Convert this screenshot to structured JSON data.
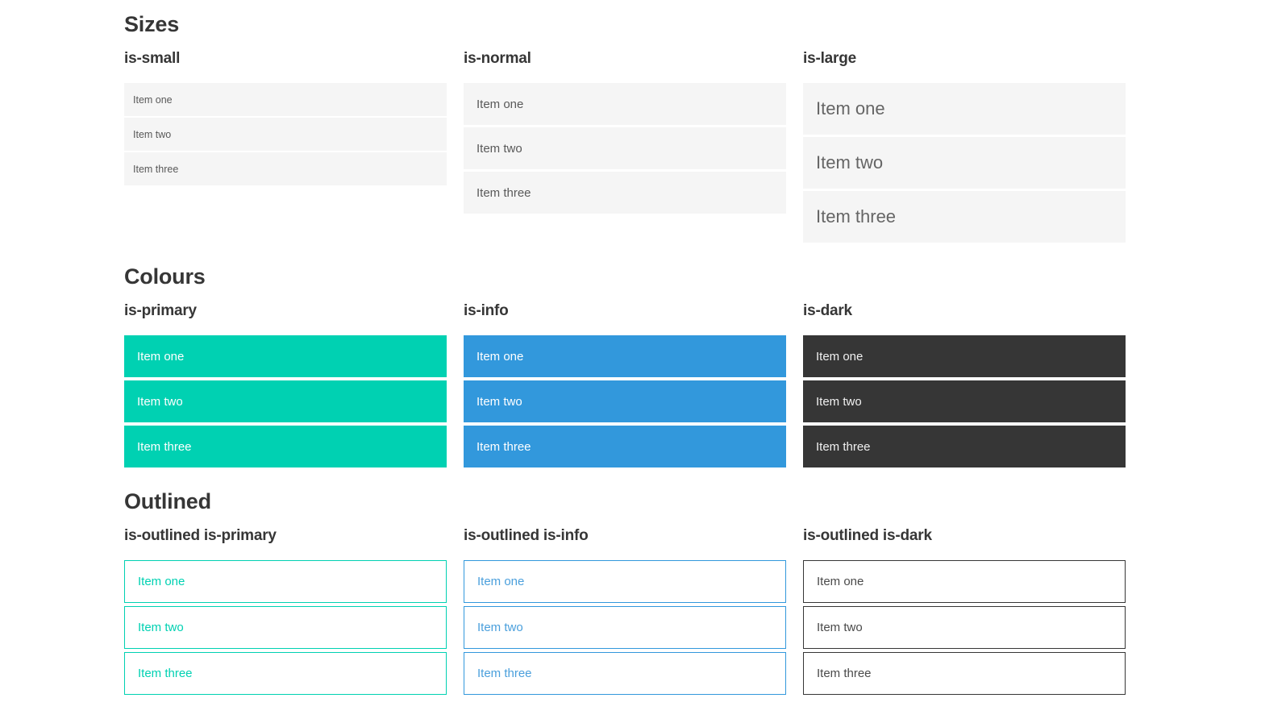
{
  "colors": {
    "primary": "#00d1b2",
    "info": "#3298dc",
    "dark": "#363636",
    "item-bg": "#f5f5f5",
    "item-text": "#595959",
    "heading": "#363636"
  },
  "sections": [
    {
      "title": "Sizes",
      "columns": [
        {
          "heading": "is-small",
          "variant": "small",
          "items": [
            "Item one",
            "Item two",
            "Item three"
          ]
        },
        {
          "heading": "is-normal",
          "variant": "normal",
          "items": [
            "Item one",
            "Item two",
            "Item three"
          ]
        },
        {
          "heading": "is-large",
          "variant": "large",
          "items": [
            "Item one",
            "Item two",
            "Item three"
          ]
        }
      ]
    },
    {
      "title": "Colours",
      "columns": [
        {
          "heading": "is-primary",
          "variant": "primary",
          "items": [
            "Item one",
            "Item two",
            "Item three"
          ]
        },
        {
          "heading": "is-info",
          "variant": "info",
          "items": [
            "Item one",
            "Item two",
            "Item three"
          ]
        },
        {
          "heading": "is-dark",
          "variant": "dark",
          "items": [
            "Item one",
            "Item two",
            "Item three"
          ]
        }
      ]
    },
    {
      "title": "Outlined",
      "columns": [
        {
          "heading": "is-outlined is-primary",
          "variant": "outlined-primary",
          "items": [
            "Item one",
            "Item two",
            "Item three"
          ]
        },
        {
          "heading": "is-outlined is-info",
          "variant": "outlined-info",
          "items": [
            "Item one",
            "Item two",
            "Item three"
          ]
        },
        {
          "heading": "is-outlined is-dark",
          "variant": "outlined-dark",
          "items": [
            "Item one",
            "Item two",
            "Item three"
          ]
        }
      ]
    }
  ]
}
